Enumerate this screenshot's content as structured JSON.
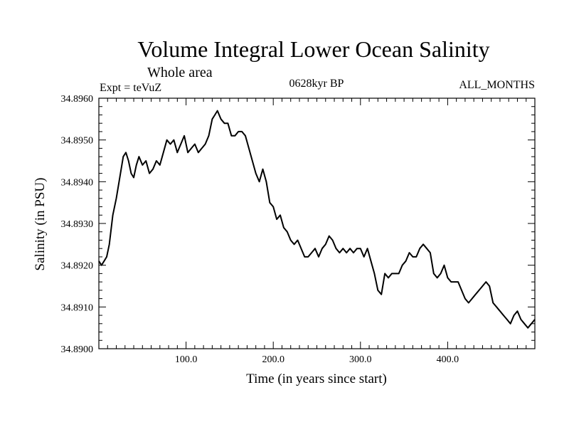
{
  "chart_data": {
    "type": "line",
    "title": "Volume Integral Lower Ocean Salinity",
    "subtitle": "Whole area",
    "expt_label": "Expt = teVuZ",
    "period_label": "0628kyr BP",
    "months_label": "ALL_MONTHS",
    "xlabel": "Time (in years since start)",
    "ylabel": "Salinity (in PSU)",
    "xlim": [
      0,
      500
    ],
    "ylim": [
      34.89,
      34.896
    ],
    "xticks": [
      100,
      200,
      300,
      400
    ],
    "xtick_labels": [
      "100.0",
      "200.0",
      "300.0",
      "400.0"
    ],
    "yticks": [
      34.89,
      34.891,
      34.892,
      34.893,
      34.894,
      34.895,
      34.896
    ],
    "ytick_labels": [
      "34.8900",
      "34.8910",
      "34.8920",
      "34.8930",
      "34.8940",
      "34.8950",
      "34.8960"
    ],
    "grid": false,
    "series": [
      {
        "color": "#000000",
        "x": [
          0,
          3,
          6,
          9,
          12,
          16,
          20,
          24,
          28,
          31,
          34,
          37,
          40,
          43,
          46,
          50,
          54,
          58,
          62,
          66,
          70,
          74,
          78,
          82,
          86,
          90,
          94,
          98,
          102,
          106,
          110,
          114,
          118,
          122,
          126,
          130,
          133,
          136,
          140,
          144,
          148,
          152,
          156,
          160,
          164,
          168,
          172,
          176,
          180,
          184,
          188,
          192,
          196,
          200,
          204,
          208,
          212,
          216,
          220,
          224,
          228,
          232,
          236,
          240,
          244,
          248,
          252,
          256,
          260,
          264,
          268,
          272,
          276,
          280,
          284,
          288,
          292,
          296,
          300,
          304,
          308,
          312,
          316,
          320,
          324,
          328,
          332,
          336,
          340,
          344,
          348,
          352,
          356,
          360,
          364,
          368,
          372,
          376,
          380,
          384,
          388,
          392,
          396,
          400,
          404,
          408,
          412,
          416,
          420,
          424,
          428,
          432,
          436,
          440,
          444,
          448,
          452,
          456,
          460,
          464,
          468,
          472,
          476,
          480,
          484,
          488,
          492,
          496,
          500
        ],
        "values": [
          34.8921,
          34.892,
          34.8921,
          34.8922,
          34.8925,
          34.8932,
          34.8936,
          34.8941,
          34.8946,
          34.8947,
          34.8945,
          34.8942,
          34.8941,
          34.8944,
          34.8946,
          34.8944,
          34.8945,
          34.8942,
          34.8943,
          34.8945,
          34.8944,
          34.8947,
          34.895,
          34.8949,
          34.895,
          34.8947,
          34.8949,
          34.8951,
          34.8947,
          34.8948,
          34.8949,
          34.8947,
          34.8948,
          34.8949,
          34.8951,
          34.8955,
          34.8956,
          34.8957,
          34.8955,
          34.8954,
          34.8954,
          34.8951,
          34.8951,
          34.8952,
          34.8952,
          34.8951,
          34.8948,
          34.8945,
          34.8942,
          34.894,
          34.8943,
          34.894,
          34.8935,
          34.8934,
          34.8931,
          34.8932,
          34.8929,
          34.8928,
          34.8926,
          34.8925,
          34.8926,
          34.8924,
          34.8922,
          34.8922,
          34.8923,
          34.8924,
          34.8922,
          34.8924,
          34.8925,
          34.8927,
          34.8926,
          34.8924,
          34.8923,
          34.8924,
          34.8923,
          34.8924,
          34.8923,
          34.8924,
          34.8924,
          34.8922,
          34.8924,
          34.8921,
          34.8918,
          34.8914,
          34.8913,
          34.8918,
          34.8917,
          34.8918,
          34.8918,
          34.8918,
          34.892,
          34.8921,
          34.8923,
          34.8922,
          34.8922,
          34.8924,
          34.8925,
          34.8924,
          34.8923,
          34.8918,
          34.8917,
          34.8918,
          34.892,
          34.8917,
          34.8916,
          34.8916,
          34.8916,
          34.8914,
          34.8912,
          34.8911,
          34.8912,
          34.8913,
          34.8914,
          34.8915,
          34.8916,
          34.8915,
          34.8911,
          34.891,
          34.8909,
          34.8908,
          34.8907,
          34.8906,
          34.8908,
          34.8909,
          34.8907,
          34.8906,
          34.8905,
          34.8906,
          34.8907
        ]
      }
    ]
  }
}
